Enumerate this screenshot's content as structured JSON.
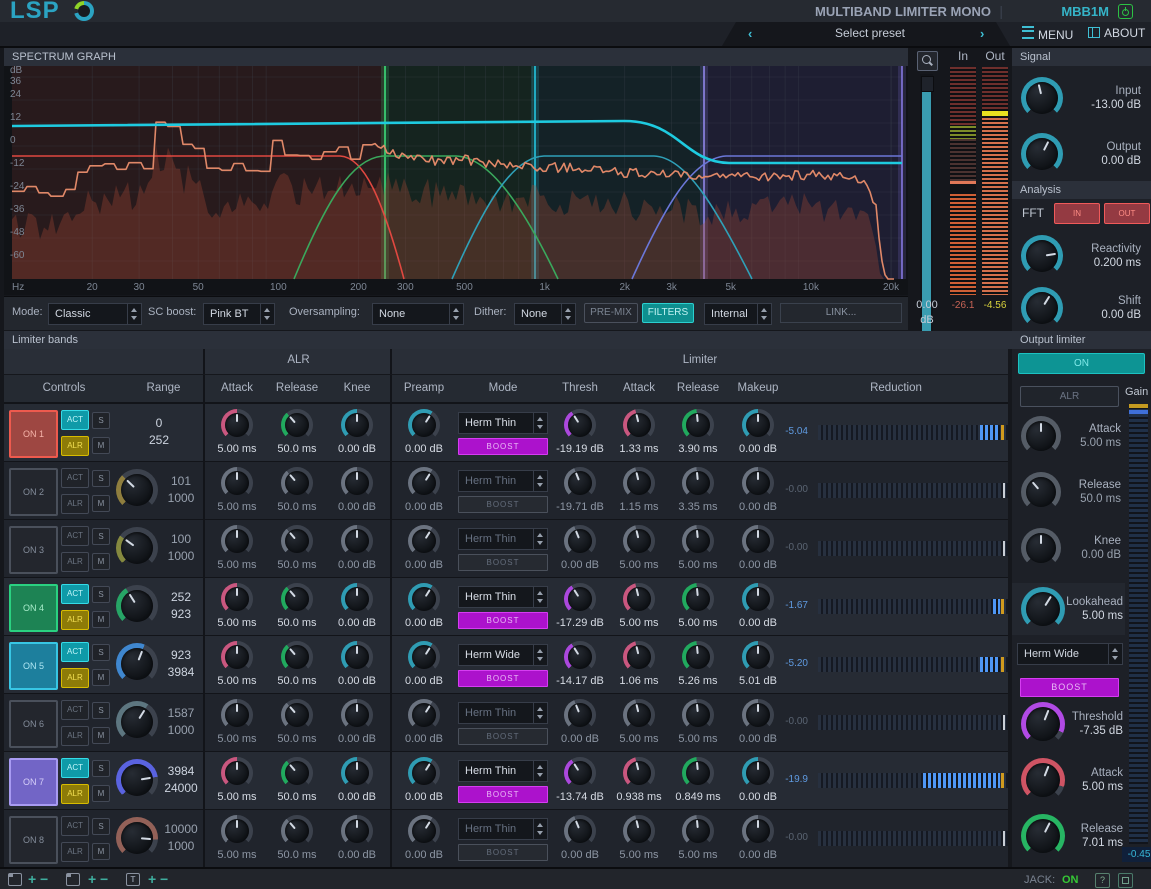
{
  "app": {
    "logo": "LSP",
    "title": "MULTIBAND LIMITER MONO",
    "model": "MBB1M"
  },
  "menubar": {
    "preset_prev": "‹",
    "preset_label": "Select preset",
    "preset_next": "›",
    "menu": "MENU",
    "about": "ABOUT"
  },
  "graph": {
    "title": "SPECTRUM GRAPH",
    "y_unit": "dB",
    "x_unit": "Hz",
    "db_ticks": [
      "36",
      "24",
      "12",
      "0",
      "-12",
      "-24",
      "-36",
      "-48",
      "-60"
    ],
    "freq_ticks": [
      "20",
      "30",
      "50",
      "100",
      "200",
      "300",
      "500",
      "1k",
      "2k",
      "3k",
      "5k",
      "10k",
      "20k"
    ],
    "split_colors": [
      "#3fe47e",
      "#25cce8",
      "#9489f0",
      "#8a7ce8"
    ],
    "region_colors": [
      "rgba(200,80,60,0.13)",
      "rgba(60,190,110,0.10)",
      "rgba(45,165,190,0.10)",
      "rgba(125,105,230,0.13)"
    ]
  },
  "zoom_fader": {
    "value": "0.00",
    "unit": "dB"
  },
  "meters": {
    "in_label": "In",
    "out_label": "Out",
    "in_value": "-26.1",
    "out_value": "-4.56"
  },
  "toolbar": {
    "mode_label": "Mode:",
    "mode_value": "Classic",
    "sc_label": "SC boost:",
    "sc_value": "Pink BT",
    "os_label": "Oversampling:",
    "os_value": "None",
    "dither_label": "Dither:",
    "dither_value": "None",
    "premix": "PRE-MIX",
    "filters": "FILTERS",
    "routing_value": "Internal",
    "link": "LINK..."
  },
  "signal": {
    "title": "Signal",
    "input_label": "Input",
    "input_value": "-13.00 dB",
    "output_label": "Output",
    "output_value": "0.00 dB"
  },
  "analysis": {
    "title": "Analysis",
    "fft_label": "FFT",
    "in_btn": "IN",
    "out_btn": "OUT",
    "reactivity_label": "Reactivity",
    "reactivity_value": "0.200 ms",
    "shift_label": "Shift",
    "shift_value": "0.00 dB"
  },
  "output_limiter": {
    "title": "Output limiter",
    "on_btn": "ON",
    "alr_btn": "ALR",
    "attack_label": "Attack",
    "attack_value": "5.00 ms",
    "release_label": "Release",
    "release_value": "50.0 ms",
    "knee_label": "Knee",
    "knee_value": "0.00 dB",
    "lookahead_label": "Lookahead",
    "lookahead_value": "5.00 ms",
    "mode_value": "Herm Wide",
    "boost": "BOOST",
    "threshold_label": "Threshold",
    "threshold_value": "-7.35 dB",
    "attack2_label": "Attack",
    "attack2_value": "5.00 ms",
    "release2_label": "Release",
    "release2_value": "7.01 ms",
    "gain_label": "Gain",
    "gain_value": "-0.45"
  },
  "bands_table": {
    "section_title": "Limiter bands",
    "controls": "Controls",
    "range": "Range",
    "alr_group": "ALR",
    "limiter_group": "Limiter",
    "h_attack": "Attack",
    "h_release": "Release",
    "h_knee": "Knee",
    "h_preamp": "Preamp",
    "h_mode": "Mode",
    "h_thresh": "Thresh",
    "h_lattack": "Attack",
    "h_lrelease": "Release",
    "h_makeup": "Makeup",
    "h_reduction": "Reduction"
  },
  "bands": [
    {
      "on": "ON 1",
      "act": "ACT",
      "alr": "ALR",
      "s": "S",
      "m": "M",
      "active": true,
      "accent": "red",
      "freq": null,
      "range_lo": "0",
      "range_hi": "252",
      "attack": "5.00 ms",
      "release": "50.0 ms",
      "knee": "0.00 dB",
      "preamp": "0.00 dB",
      "mode": "Herm Thin",
      "boost": "BOOST",
      "boost_on": true,
      "thresh": "-19.19 dB",
      "l_attack": "1.33 ms",
      "l_release": "3.90 ms",
      "makeup": "0.00 dB",
      "reduction": "-5.04",
      "red_lit": [
        85,
        11
      ]
    },
    {
      "on": "ON 2",
      "act": "ACT",
      "alr": "ALR",
      "s": "S",
      "m": "M",
      "active": false,
      "accent": "off",
      "freq": {
        "color": "#8f7e3e",
        "frac": 0.33
      },
      "range_lo": "101",
      "range_hi": "1000",
      "attack": "5.00 ms",
      "release": "50.0 ms",
      "knee": "0.00 dB",
      "preamp": "0.00 dB",
      "mode": "Herm Thin",
      "boost": "BOOST",
      "boost_on": false,
      "thresh": "-19.71 dB",
      "l_attack": "1.15 ms",
      "l_release": "3.35 ms",
      "makeup": "0.00 dB",
      "reduction": "-0.00",
      "red_lit": null
    },
    {
      "on": "ON 3",
      "act": "ACT",
      "alr": "ALR",
      "s": "S",
      "m": "M",
      "active": false,
      "accent": "off",
      "freq": {
        "color": "#85893f",
        "frac": 0.3
      },
      "range_lo": "100",
      "range_hi": "1000",
      "attack": "5.00 ms",
      "release": "50.0 ms",
      "knee": "0.00 dB",
      "preamp": "0.00 dB",
      "mode": "Herm Thin",
      "boost": "BOOST",
      "boost_on": false,
      "thresh": "0.00 dB",
      "l_attack": "5.00 ms",
      "l_release": "5.00 ms",
      "makeup": "0.00 dB",
      "reduction": "-0.00",
      "red_lit": null
    },
    {
      "on": "ON 4",
      "act": "ACT",
      "alr": "ALR",
      "s": "S",
      "m": "M",
      "active": true,
      "accent": "green",
      "freq": {
        "color": "#27a566",
        "frac": 0.38
      },
      "range_lo": "252",
      "range_hi": "923",
      "attack": "5.00 ms",
      "release": "50.0 ms",
      "knee": "0.00 dB",
      "preamp": "0.00 dB",
      "mode": "Herm Thin",
      "boost": "BOOST",
      "boost_on": true,
      "thresh": "-17.29 dB",
      "l_attack": "5.00 ms",
      "l_release": "5.00 ms",
      "makeup": "0.00 dB",
      "reduction": "-1.67",
      "red_lit": [
        92,
        4
      ]
    },
    {
      "on": "ON 5",
      "act": "ACT",
      "alr": "ALR",
      "s": "S",
      "m": "M",
      "active": true,
      "accent": "cyan",
      "freq": {
        "color": "#3f87cf",
        "frac": 0.58
      },
      "range_lo": "923",
      "range_hi": "3984",
      "attack": "5.00 ms",
      "release": "50.0 ms",
      "knee": "0.00 dB",
      "preamp": "0.00 dB",
      "mode": "Herm Wide",
      "boost": "BOOST",
      "boost_on": true,
      "thresh": "-14.17 dB",
      "l_attack": "1.06 ms",
      "l_release": "5.26 ms",
      "makeup": "5.01 dB",
      "reduction": "-5.20",
      "red_lit": [
        85,
        11
      ]
    },
    {
      "on": "ON 6",
      "act": "ACT",
      "alr": "ALR",
      "s": "S",
      "m": "M",
      "active": false,
      "accent": "off",
      "freq": {
        "color": "#5d7680",
        "frac": 0.62
      },
      "range_lo": "1587",
      "range_hi": "1000",
      "attack": "5.00 ms",
      "release": "50.0 ms",
      "knee": "0.00 dB",
      "preamp": "0.00 dB",
      "mode": "Herm Thin",
      "boost": "BOOST",
      "boost_on": false,
      "thresh": "0.00 dB",
      "l_attack": "5.00 ms",
      "l_release": "5.00 ms",
      "makeup": "0.00 dB",
      "reduction": "-0.00",
      "red_lit": null
    },
    {
      "on": "ON 7",
      "act": "ACT",
      "alr": "ALR",
      "s": "S",
      "m": "M",
      "active": true,
      "accent": "violet",
      "freq": {
        "color": "#5a63e0",
        "frac": 0.8
      },
      "range_lo": "3984",
      "range_hi": "24000",
      "attack": "5.00 ms",
      "release": "50.0 ms",
      "knee": "0.00 dB",
      "preamp": "0.00 dB",
      "mode": "Herm Thin",
      "boost": "BOOST",
      "boost_on": true,
      "thresh": "-13.74 dB",
      "l_attack": "0.938 ms",
      "l_release": "0.849 ms",
      "makeup": "0.00 dB",
      "reduction": "-19.9",
      "red_lit": [
        55,
        41
      ]
    },
    {
      "on": "ON 8",
      "act": "ACT",
      "alr": "ALR",
      "s": "S",
      "m": "M",
      "active": false,
      "accent": "off",
      "freq": {
        "color": "#936158",
        "frac": 0.85
      },
      "range_lo": "10000",
      "range_hi": "1000",
      "attack": "5.00 ms",
      "release": "50.0 ms",
      "knee": "0.00 dB",
      "preamp": "0.00 dB",
      "mode": "Herm Thin",
      "boost": "BOOST",
      "boost_on": false,
      "thresh": "0.00 dB",
      "l_attack": "5.00 ms",
      "l_release": "5.00 ms",
      "makeup": "0.00 dB",
      "reduction": "-0.00",
      "red_lit": null
    }
  ],
  "statusbar": {
    "jack_label": "JACK:",
    "jack_value": "ON"
  }
}
